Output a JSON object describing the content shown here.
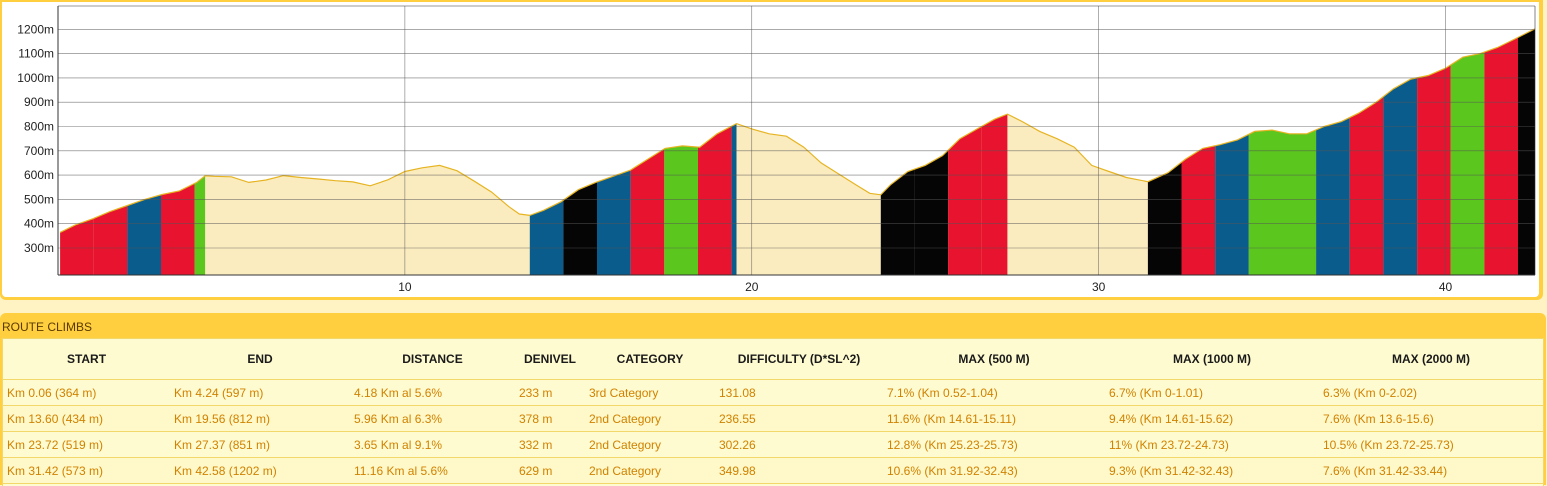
{
  "chart_data": {
    "type": "area",
    "title": "",
    "xlabel": "",
    "ylabel": "",
    "xlim": [
      0,
      42.58
    ],
    "ylim": [
      200,
      1250
    ],
    "y_ticks": [
      300,
      400,
      500,
      600,
      700,
      800,
      900,
      1000,
      1100,
      1200
    ],
    "y_tick_labels": [
      "300m",
      "400m",
      "500m",
      "600m",
      "700m",
      "800m",
      "900m",
      "1000m",
      "1100m",
      "1200m"
    ],
    "x_ticks": [
      10,
      20,
      30,
      40
    ],
    "x_tick_labels": [
      "10",
      "20",
      "30",
      "40"
    ],
    "profile": [
      [
        0.06,
        364
      ],
      [
        0.5,
        395
      ],
      [
        1.0,
        420
      ],
      [
        1.5,
        450
      ],
      [
        2.0,
        475
      ],
      [
        2.5,
        500
      ],
      [
        3.0,
        520
      ],
      [
        3.5,
        535
      ],
      [
        4.0,
        570
      ],
      [
        4.24,
        597
      ],
      [
        4.5,
        595
      ],
      [
        5.0,
        593
      ],
      [
        5.5,
        570
      ],
      [
        6.0,
        580
      ],
      [
        6.5,
        598
      ],
      [
        7.0,
        590
      ],
      [
        7.5,
        584
      ],
      [
        8.0,
        577
      ],
      [
        8.5,
        572
      ],
      [
        9.0,
        556
      ],
      [
        9.5,
        580
      ],
      [
        10.0,
        615
      ],
      [
        10.5,
        630
      ],
      [
        11.0,
        640
      ],
      [
        11.5,
        618
      ],
      [
        12.0,
        575
      ],
      [
        12.5,
        530
      ],
      [
        13.0,
        470
      ],
      [
        13.3,
        440
      ],
      [
        13.6,
        434
      ],
      [
        14.0,
        455
      ],
      [
        14.5,
        490
      ],
      [
        15.0,
        540
      ],
      [
        15.5,
        570
      ],
      [
        16.0,
        595
      ],
      [
        16.5,
        620
      ],
      [
        17.0,
        665
      ],
      [
        17.5,
        710
      ],
      [
        18.0,
        720
      ],
      [
        18.5,
        715
      ],
      [
        19.0,
        770
      ],
      [
        19.56,
        812
      ],
      [
        20.0,
        790
      ],
      [
        20.5,
        770
      ],
      [
        21.0,
        760
      ],
      [
        21.5,
        715
      ],
      [
        22.0,
        650
      ],
      [
        22.5,
        605
      ],
      [
        23.0,
        560
      ],
      [
        23.4,
        525
      ],
      [
        23.72,
        519
      ],
      [
        24.0,
        560
      ],
      [
        24.5,
        615
      ],
      [
        25.0,
        640
      ],
      [
        25.5,
        680
      ],
      [
        26.0,
        750
      ],
      [
        26.5,
        790
      ],
      [
        27.0,
        830
      ],
      [
        27.37,
        851
      ],
      [
        27.8,
        820
      ],
      [
        28.3,
        780
      ],
      [
        28.8,
        750
      ],
      [
        29.3,
        715
      ],
      [
        29.8,
        640
      ],
      [
        30.3,
        615
      ],
      [
        30.8,
        590
      ],
      [
        31.42,
        573
      ],
      [
        32.0,
        610
      ],
      [
        32.5,
        665
      ],
      [
        33.0,
        710
      ],
      [
        33.5,
        725
      ],
      [
        34.0,
        745
      ],
      [
        34.5,
        780
      ],
      [
        35.0,
        785
      ],
      [
        35.5,
        770
      ],
      [
        36.0,
        770
      ],
      [
        36.5,
        800
      ],
      [
        37.0,
        820
      ],
      [
        37.5,
        855
      ],
      [
        38.0,
        900
      ],
      [
        38.5,
        955
      ],
      [
        39.0,
        995
      ],
      [
        39.5,
        1010
      ],
      [
        40.0,
        1040
      ],
      [
        40.5,
        1085
      ],
      [
        41.0,
        1100
      ],
      [
        41.5,
        1125
      ],
      [
        42.0,
        1160
      ],
      [
        42.58,
        1202
      ]
    ],
    "segments": [
      {
        "from": 0.06,
        "to": 1.03,
        "color": "#e8132e"
      },
      {
        "from": 1.03,
        "to": 2.0,
        "color": "#e8132e"
      },
      {
        "from": 2.0,
        "to": 2.97,
        "color": "#0a5c8c"
      },
      {
        "from": 2.97,
        "to": 3.94,
        "color": "#e8132e"
      },
      {
        "from": 3.94,
        "to": 4.24,
        "color": "#5ac61e"
      },
      {
        "from": 13.6,
        "to": 14.57,
        "color": "#0a5c8c"
      },
      {
        "from": 14.57,
        "to": 15.54,
        "color": "#050505"
      },
      {
        "from": 15.54,
        "to": 16.51,
        "color": "#0a5c8c"
      },
      {
        "from": 16.51,
        "to": 17.48,
        "color": "#e8132e"
      },
      {
        "from": 17.48,
        "to": 18.45,
        "color": "#5ac61e"
      },
      {
        "from": 18.45,
        "to": 19.42,
        "color": "#e8132e"
      },
      {
        "from": 19.42,
        "to": 19.56,
        "color": "#0a5c8c"
      },
      {
        "from": 23.72,
        "to": 24.69,
        "color": "#050505"
      },
      {
        "from": 24.69,
        "to": 25.66,
        "color": "#050505"
      },
      {
        "from": 25.66,
        "to": 26.63,
        "color": "#e8132e"
      },
      {
        "from": 26.63,
        "to": 27.37,
        "color": "#e8132e"
      },
      {
        "from": 31.42,
        "to": 32.39,
        "color": "#050505"
      },
      {
        "from": 32.39,
        "to": 33.36,
        "color": "#e8132e"
      },
      {
        "from": 33.36,
        "to": 34.33,
        "color": "#0a5c8c"
      },
      {
        "from": 34.33,
        "to": 36.27,
        "color": "#5ac61e"
      },
      {
        "from": 36.27,
        "to": 37.24,
        "color": "#0a5c8c"
      },
      {
        "from": 37.24,
        "to": 38.21,
        "color": "#e8132e"
      },
      {
        "from": 38.21,
        "to": 39.18,
        "color": "#0a5c8c"
      },
      {
        "from": 39.18,
        "to": 40.15,
        "color": "#e8132e"
      },
      {
        "from": 40.15,
        "to": 41.12,
        "color": "#5ac61e"
      },
      {
        "from": 41.12,
        "to": 42.09,
        "color": "#e8132e"
      },
      {
        "from": 42.09,
        "to": 42.58,
        "color": "#050505"
      }
    ],
    "colors": {
      "flat_fill": "#fbecc0",
      "profile_line": "#e6b422",
      "grid": "#555555"
    }
  },
  "climbs": {
    "title": "ROUTE CLIMBS",
    "columns": [
      "START",
      "END",
      "DISTANCE",
      "DENIVEL",
      "CATEGORY",
      "DIFFICULTY (D*SL^2)",
      "MAX (500 M)",
      "MAX (1000 M)",
      "MAX (2000 M)"
    ],
    "rows": [
      [
        "Km 0.06 (364 m)",
        "Km 4.24 (597 m)",
        "4.18 Km al 5.6%",
        "233 m",
        "3rd Category",
        "131.08",
        "7.1% (Km 0.52-1.04)",
        "6.7% (Km 0-1.01)",
        "6.3% (Km 0-2.02)"
      ],
      [
        "Km 13.60 (434 m)",
        "Km 19.56 (812 m)",
        "5.96 Km al 6.3%",
        "378 m",
        "2nd Category",
        "236.55",
        "11.6% (Km 14.61-15.11)",
        "9.4% (Km 14.61-15.62)",
        "7.6% (Km 13.6-15.6)"
      ],
      [
        "Km 23.72 (519 m)",
        "Km 27.37 (851 m)",
        "3.65 Km al 9.1%",
        "332 m",
        "2nd Category",
        "302.26",
        "12.8% (Km 25.23-25.73)",
        "11% (Km 23.72-24.73)",
        "10.5% (Km 23.72-25.73)"
      ],
      [
        "Km 31.42 (573 m)",
        "Km 42.58 (1202 m)",
        "11.16 Km al 5.6%",
        "629 m",
        "2nd Category",
        "349.98",
        "10.6% (Km 31.92-32.43)",
        "9.3% (Km 31.42-32.43)",
        "7.6% (Km 31.42-33.44)"
      ]
    ]
  }
}
